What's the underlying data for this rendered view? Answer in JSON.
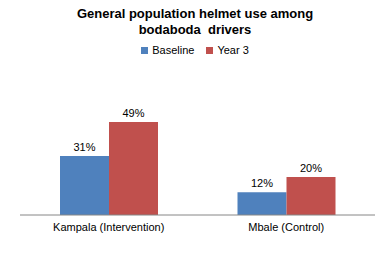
{
  "chart_data": {
    "type": "bar",
    "title": "General population helmet use among bodaboda  drivers",
    "categories": [
      "Kampala (Intervention)",
      "Mbale (Control)"
    ],
    "series": [
      {
        "name": "Baseline",
        "color": "#4f81bd",
        "values": [
          31,
          12
        ],
        "value_labels": [
          "31%",
          "12%"
        ]
      },
      {
        "name": "Year 3",
        "color": "#c0504d",
        "values": [
          49,
          20
        ],
        "value_labels": [
          "49%",
          "20%"
        ]
      }
    ],
    "ylim": [
      0,
      60
    ],
    "data_labels": true,
    "tick_labels": "x",
    "legend": "top",
    "grid": false
  }
}
